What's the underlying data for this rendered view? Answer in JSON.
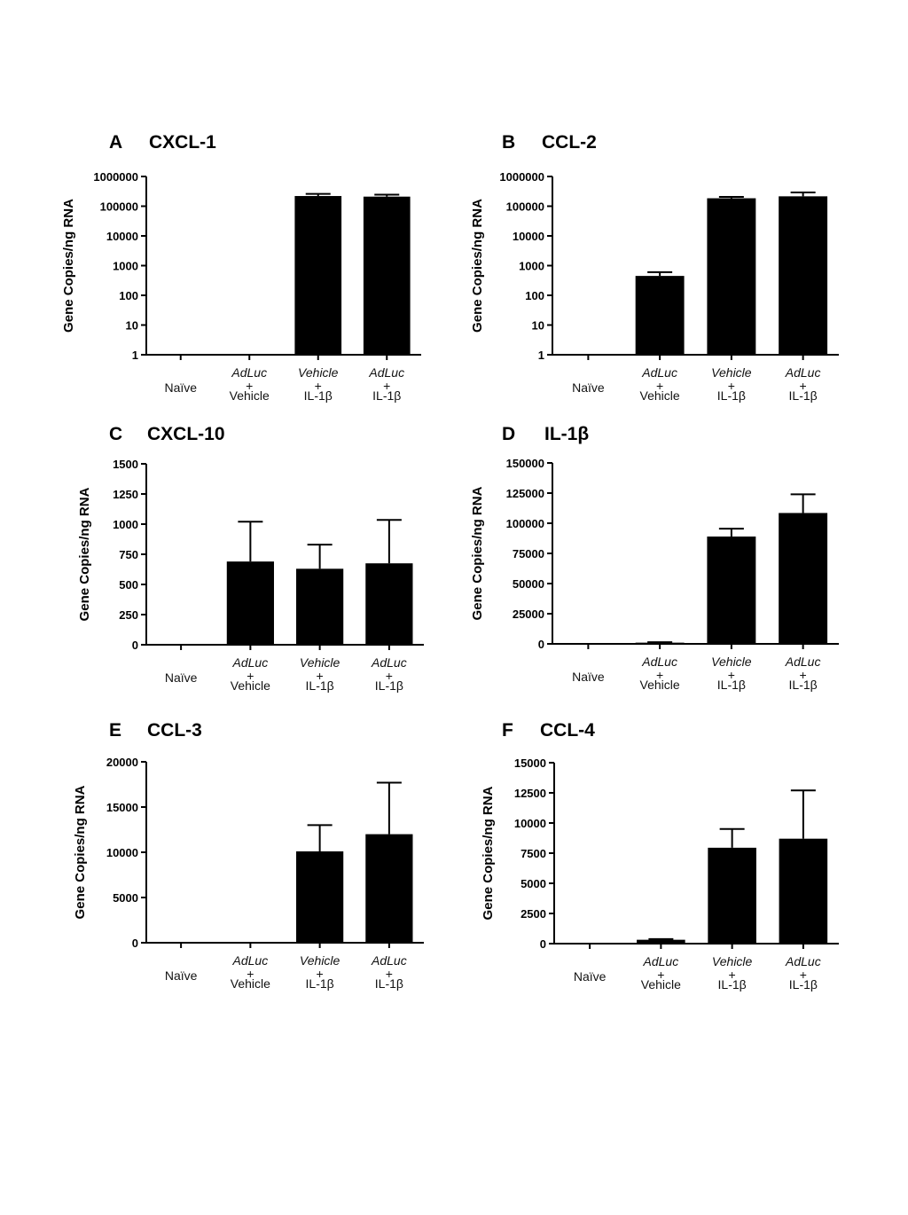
{
  "chart_data": [
    {
      "type": "bar",
      "panel": "A",
      "title": "CXCL-1",
      "ylabel": "Gene Copies/ng RNA",
      "yscale": "log",
      "ylim": [
        1,
        1000000
      ],
      "yticks": [
        "1",
        "10",
        "100",
        "1000",
        "10000",
        "100000",
        "1000000"
      ],
      "categories": [
        [
          "Naïve"
        ],
        [
          "AdLuc",
          "+",
          "Vehicle"
        ],
        [
          "Vehicle",
          "+",
          "IL-1β"
        ],
        [
          "AdLuc",
          "+",
          "IL-1β"
        ]
      ],
      "values": [
        0,
        0,
        220000,
        210000
      ],
      "errors": [
        0,
        0,
        40000,
        35000
      ]
    },
    {
      "type": "bar",
      "panel": "B",
      "title": "CCL-2",
      "ylabel": "Gene Copies/ng RNA",
      "yscale": "log",
      "ylim": [
        1,
        1000000
      ],
      "yticks": [
        "1",
        "10",
        "100",
        "1000",
        "10000",
        "100000",
        "1000000"
      ],
      "categories": [
        [
          "Naïve"
        ],
        [
          "AdLuc",
          "+",
          "Vehicle"
        ],
        [
          "Vehicle",
          "+",
          "IL-1β"
        ],
        [
          "AdLuc",
          "+",
          "IL-1β"
        ]
      ],
      "values": [
        0,
        450,
        185000,
        215000
      ],
      "errors": [
        0,
        150,
        20000,
        75000
      ]
    },
    {
      "type": "bar",
      "panel": "C",
      "title": "CXCL-10",
      "ylabel": "Gene Copies/ng RNA",
      "yscale": "linear",
      "ylim": [
        0,
        1500
      ],
      "yticks": [
        "0",
        "250",
        "500",
        "750",
        "1000",
        "1250",
        "1500"
      ],
      "categories": [
        [
          "Naïve"
        ],
        [
          "AdLuc",
          "+",
          "Vehicle"
        ],
        [
          "Vehicle",
          "+",
          "IL-1β"
        ],
        [
          "AdLuc",
          "+",
          "IL-1β"
        ]
      ],
      "values": [
        0,
        690,
        630,
        675
      ],
      "errors": [
        0,
        330,
        200,
        360
      ]
    },
    {
      "type": "bar",
      "panel": "D",
      "title": "IL-1β",
      "ylabel": "Gene Copies/ng RNA",
      "yscale": "linear",
      "ylim": [
        0,
        150000
      ],
      "yticks": [
        "0",
        "25000",
        "50000",
        "75000",
        "100000",
        "125000",
        "150000"
      ],
      "categories": [
        [
          "Naïve"
        ],
        [
          "AdLuc",
          "+",
          "Vehicle"
        ],
        [
          "Vehicle",
          "+",
          "IL-1β"
        ],
        [
          "AdLuc",
          "+",
          "IL-1β"
        ]
      ],
      "values": [
        0,
        1000,
        89000,
        108500
      ],
      "errors": [
        0,
        400,
        6500,
        15500
      ]
    },
    {
      "type": "bar",
      "panel": "E",
      "title": "CCL-3",
      "ylabel": "Gene Copies/ng RNA",
      "yscale": "linear",
      "ylim": [
        0,
        20000
      ],
      "yticks": [
        "0",
        "5000",
        "10000",
        "15000",
        "20000"
      ],
      "categories": [
        [
          "Naïve"
        ],
        [
          "AdLuc",
          "+",
          "Vehicle"
        ],
        [
          "Vehicle",
          "+",
          "IL-1β"
        ],
        [
          "AdLuc",
          "+",
          "IL-1β"
        ]
      ],
      "values": [
        0,
        0,
        10100,
        12000
      ],
      "errors": [
        0,
        0,
        2900,
        5700
      ]
    },
    {
      "type": "bar",
      "panel": "F",
      "title": "CCL-4",
      "ylabel": "Gene Copies/ng RNA",
      "yscale": "linear",
      "ylim": [
        0,
        15000
      ],
      "yticks": [
        "0",
        "2500",
        "5000",
        "7500",
        "10000",
        "12500",
        "15000"
      ],
      "categories": [
        [
          "Naïve"
        ],
        [
          "AdLuc",
          "+",
          "Vehicle"
        ],
        [
          "Vehicle",
          "+",
          "IL-1β"
        ],
        [
          "AdLuc",
          "+",
          "IL-1β"
        ]
      ],
      "values": [
        0,
        320,
        7950,
        8700
      ],
      "errors": [
        0,
        60,
        1550,
        4000
      ]
    }
  ],
  "colors": {
    "bar": "#000000",
    "axis": "#000000",
    "text": "#000000"
  }
}
